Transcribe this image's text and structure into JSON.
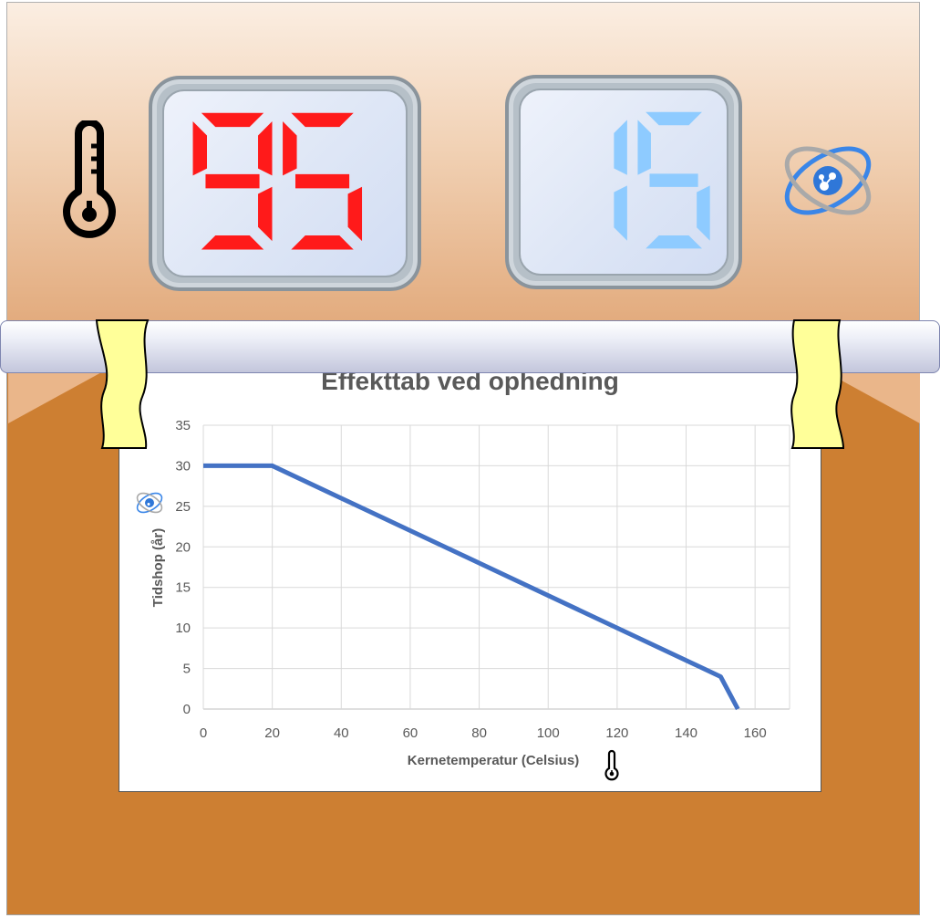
{
  "displays": {
    "temperature": {
      "value": "95",
      "color": "#ff1a1a"
    },
    "years": {
      "value": "15",
      "color": "#8ecbff"
    }
  },
  "icons": {
    "left": "thermometer-icon",
    "right": "atom-icon",
    "ylabel_icon": "atom-icon",
    "xlabel_icon": "thermometer-icon"
  },
  "colors": {
    "panel_bottom": "#cd7f32",
    "tape": "#ffff99",
    "line": "#4472c4"
  },
  "chart_data": {
    "type": "line",
    "title": "Effekttab ved ophedning",
    "xlabel": "Kernetemperatur (Celsius)",
    "ylabel": "Tidshop (år)",
    "xlim": [
      0,
      170
    ],
    "ylim": [
      0,
      35
    ],
    "xticks": [
      0,
      20,
      40,
      60,
      80,
      100,
      120,
      140,
      160
    ],
    "yticks": [
      0,
      5,
      10,
      15,
      20,
      25,
      30,
      35
    ],
    "grid": true,
    "series": [
      {
        "x": [
          0,
          20,
          150,
          155
        ],
        "y": [
          30,
          30,
          4,
          0
        ]
      }
    ]
  }
}
